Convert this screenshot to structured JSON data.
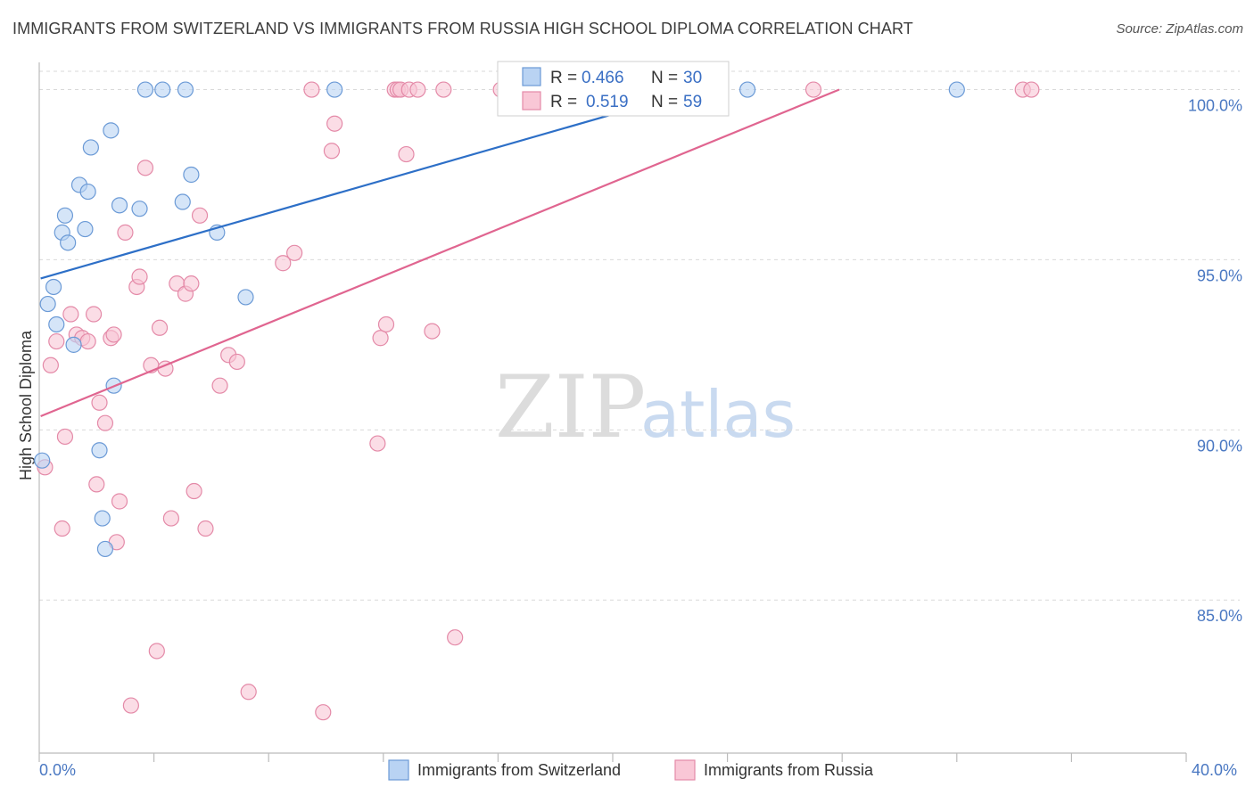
{
  "title": "IMMIGRANTS FROM SWITZERLAND VS IMMIGRANTS FROM RUSSIA HIGH SCHOOL DIPLOMA CORRELATION CHART",
  "source": "Source: ZipAtlas.com",
  "watermark": {
    "zip": "ZIP",
    "atlas": "atlas"
  },
  "colors": {
    "switzerland_fill": "#b9d3f3",
    "switzerland_stroke": "#6b9ad6",
    "switzerland_line": "#2d6fc7",
    "russia_fill": "#f9c7d6",
    "russia_stroke": "#e48aa8",
    "russia_line": "#e06590",
    "grid": "#d9d9d9",
    "tick_text": "#4a78c2"
  },
  "legend": {
    "r_label": "R =",
    "n_label": "N =",
    "switzerland": {
      "r": "0.466",
      "n": "30"
    },
    "russia": {
      "r": "0.519",
      "n": "59"
    }
  },
  "chart_data": {
    "type": "scatter",
    "title": "IMMIGRANTS FROM SWITZERLAND VS IMMIGRANTS FROM RUSSIA HIGH SCHOOL DIPLOMA CORRELATION CHART",
    "xlabel": "",
    "ylabel": "High School Diploma",
    "xlim": [
      0,
      40
    ],
    "ylim": [
      80.5,
      100.8
    ],
    "x_tick_labels": [
      "0.0%",
      "40.0%"
    ],
    "y_ticks": [
      85,
      90,
      95,
      100
    ],
    "y_tick_labels": [
      "85.0%",
      "90.0%",
      "95.0%",
      "100.0%"
    ],
    "grid": true,
    "legend_placement": "bottom",
    "series": [
      {
        "name": "Immigrants from Switzerland",
        "trend": [
          [
            0.05,
            94.45
          ],
          [
            23.0,
            100.0
          ]
        ],
        "points": [
          [
            0.1,
            89.1
          ],
          [
            0.3,
            93.7
          ],
          [
            0.5,
            94.2
          ],
          [
            0.6,
            93.1
          ],
          [
            0.8,
            95.8
          ],
          [
            0.9,
            96.3
          ],
          [
            1.0,
            95.5
          ],
          [
            1.2,
            92.5
          ],
          [
            1.4,
            97.2
          ],
          [
            1.6,
            95.9
          ],
          [
            1.7,
            97.0
          ],
          [
            1.8,
            98.3
          ],
          [
            2.1,
            89.4
          ],
          [
            2.2,
            87.4
          ],
          [
            2.3,
            86.5
          ],
          [
            2.5,
            98.8
          ],
          [
            2.6,
            91.3
          ],
          [
            2.8,
            96.6
          ],
          [
            3.5,
            96.5
          ],
          [
            3.7,
            100.0
          ],
          [
            4.3,
            100.0
          ],
          [
            5.0,
            96.7
          ],
          [
            5.1,
            100.0
          ],
          [
            5.3,
            97.5
          ],
          [
            6.2,
            95.8
          ],
          [
            7.2,
            93.9
          ],
          [
            10.3,
            100.0
          ],
          [
            18.1,
            100.0
          ],
          [
            24.7,
            100.0
          ],
          [
            32.0,
            100.0
          ]
        ]
      },
      {
        "name": "Immigrants from Russia",
        "trend": [
          [
            0.05,
            90.4
          ],
          [
            27.9,
            100.0
          ]
        ],
        "points": [
          [
            0.2,
            88.9
          ],
          [
            0.4,
            91.9
          ],
          [
            0.6,
            92.6
          ],
          [
            0.8,
            87.1
          ],
          [
            0.9,
            89.8
          ],
          [
            1.1,
            93.4
          ],
          [
            1.3,
            92.8
          ],
          [
            1.5,
            92.7
          ],
          [
            1.7,
            92.6
          ],
          [
            1.9,
            93.4
          ],
          [
            2.0,
            88.4
          ],
          [
            2.1,
            90.8
          ],
          [
            2.3,
            90.2
          ],
          [
            2.5,
            92.7
          ],
          [
            2.6,
            92.8
          ],
          [
            2.7,
            86.7
          ],
          [
            2.8,
            87.9
          ],
          [
            3.0,
            95.8
          ],
          [
            3.2,
            81.9
          ],
          [
            3.4,
            94.2
          ],
          [
            3.5,
            94.5
          ],
          [
            3.7,
            97.7
          ],
          [
            3.9,
            91.9
          ],
          [
            4.1,
            83.5
          ],
          [
            4.2,
            93.0
          ],
          [
            4.4,
            91.8
          ],
          [
            4.6,
            87.4
          ],
          [
            4.8,
            94.3
          ],
          [
            5.1,
            94.0
          ],
          [
            5.3,
            94.3
          ],
          [
            5.4,
            88.2
          ],
          [
            5.6,
            96.3
          ],
          [
            5.8,
            87.1
          ],
          [
            6.3,
            91.3
          ],
          [
            6.6,
            92.2
          ],
          [
            6.9,
            92.0
          ],
          [
            7.3,
            82.3
          ],
          [
            8.5,
            94.9
          ],
          [
            8.9,
            95.2
          ],
          [
            9.5,
            100.0
          ],
          [
            9.9,
            81.7
          ],
          [
            10.2,
            98.2
          ],
          [
            10.3,
            99.0
          ],
          [
            11.8,
            89.6
          ],
          [
            11.9,
            92.7
          ],
          [
            12.1,
            93.1
          ],
          [
            12.4,
            100.0
          ],
          [
            12.5,
            100.0
          ],
          [
            12.6,
            100.0
          ],
          [
            12.8,
            98.1
          ],
          [
            12.9,
            100.0
          ],
          [
            13.2,
            100.0
          ],
          [
            13.7,
            92.9
          ],
          [
            14.1,
            100.0
          ],
          [
            14.5,
            83.9
          ],
          [
            16.1,
            100.0
          ],
          [
            27.0,
            100.0
          ],
          [
            34.3,
            100.0
          ],
          [
            34.6,
            100.0
          ]
        ]
      }
    ]
  }
}
